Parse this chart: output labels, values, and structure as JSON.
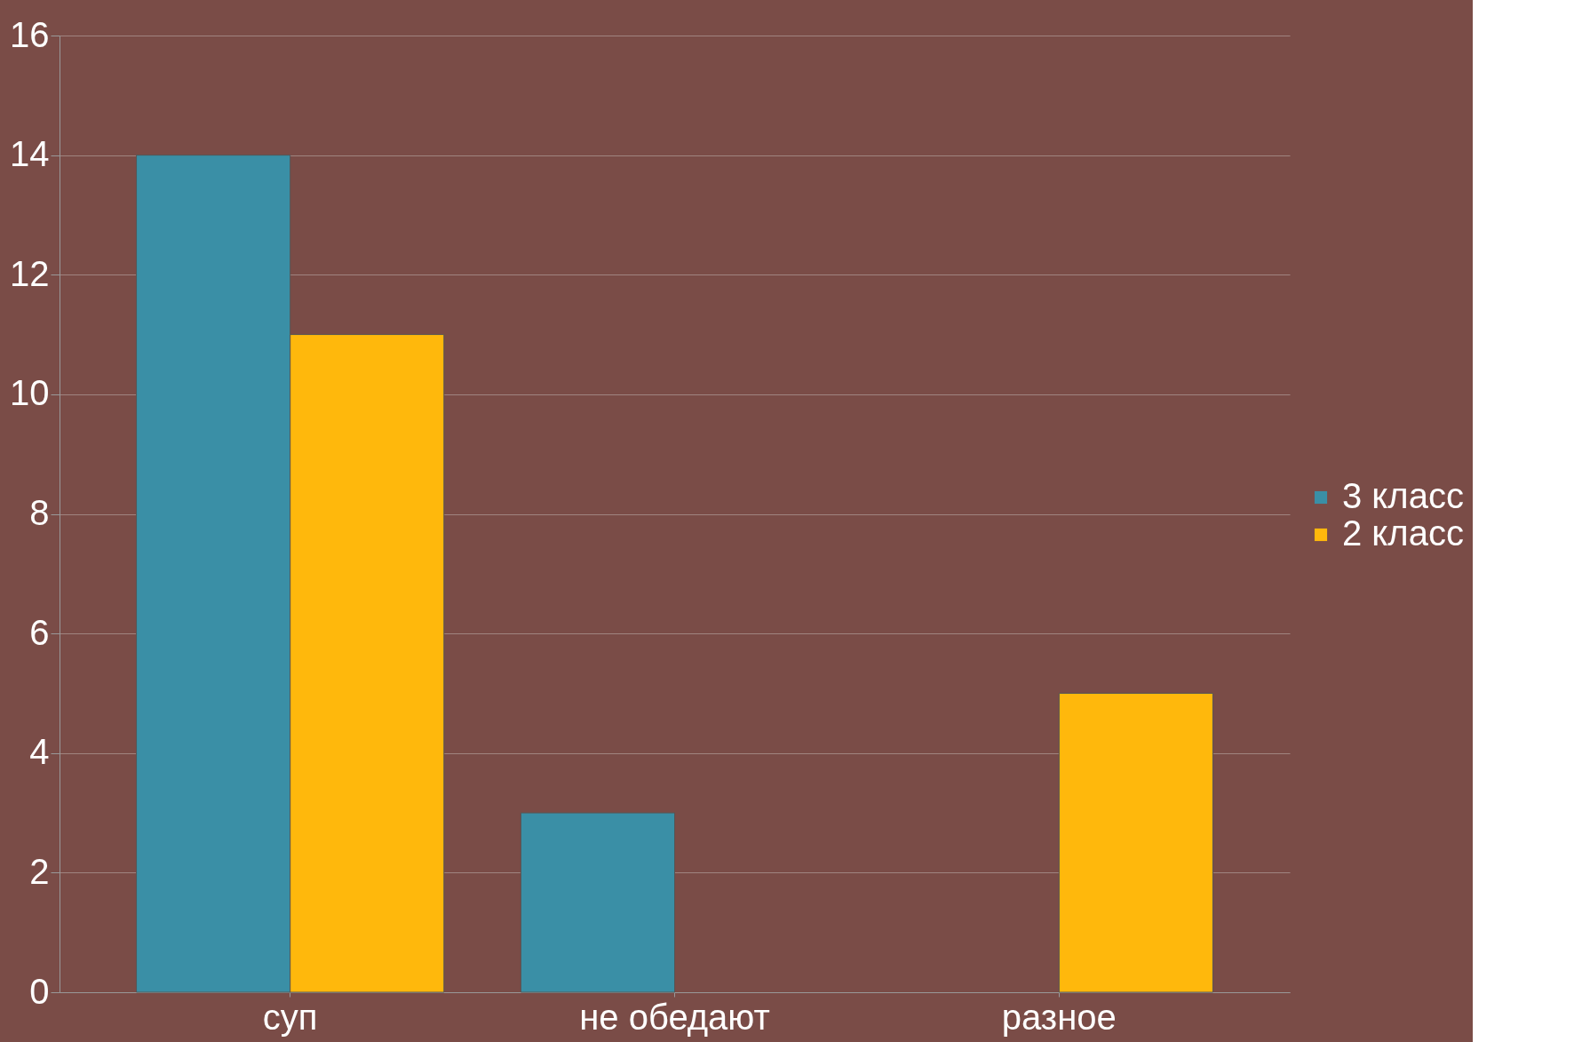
{
  "chart_data": {
    "type": "bar",
    "categories": [
      "суп",
      "не обедают",
      "разное"
    ],
    "series": [
      {
        "name": "3 класс",
        "color": "#3a8fa6",
        "values": [
          14,
          3,
          null
        ]
      },
      {
        "name": "2 класс",
        "color": "#ffb80c",
        "values": [
          11,
          null,
          5
        ]
      }
    ],
    "ylim": [
      0,
      16
    ],
    "yticks": [
      0,
      2,
      4,
      6,
      8,
      10,
      12,
      14,
      16
    ],
    "grid": "y",
    "legend": "right"
  }
}
